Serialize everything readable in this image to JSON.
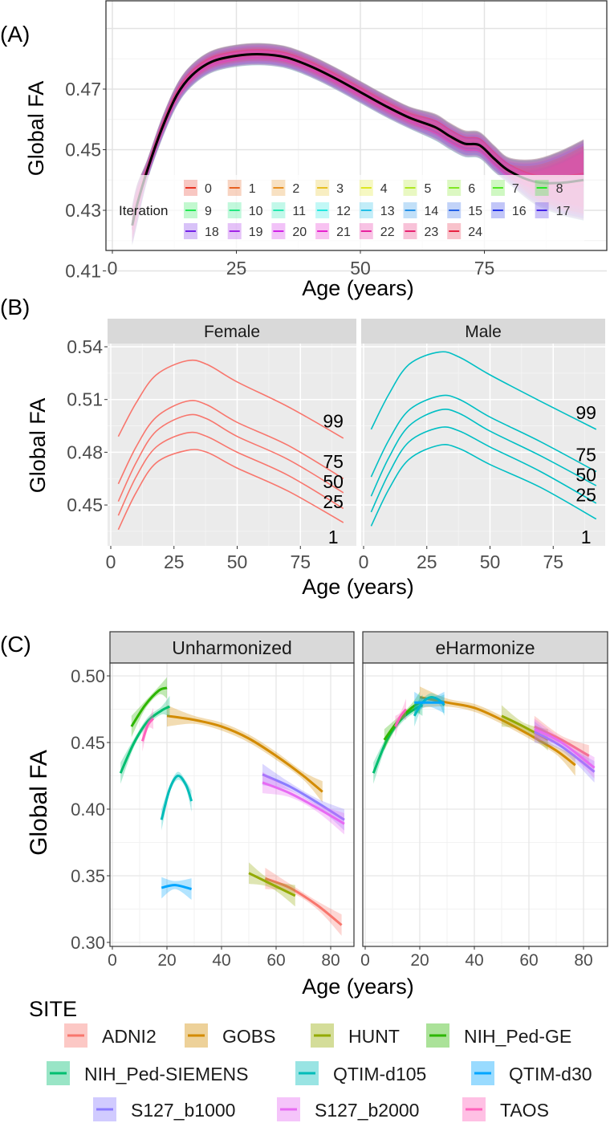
{
  "chart_data": [
    {
      "panel": "(A)",
      "type": "line",
      "xlabel": "Age (years)",
      "ylabel": "Global FA",
      "xlim": [
        0,
        97
      ],
      "ylim": [
        0.4076,
        0.4899
      ],
      "xticks": [
        "0",
        "25",
        "50",
        "75"
      ],
      "yticks": [
        "0.41",
        "0.43",
        "0.45",
        "0.47"
      ],
      "legend": {
        "title": "Iteration",
        "entries": [
          "0",
          "1",
          "2",
          "3",
          "4",
          "5",
          "6",
          "7",
          "8",
          "9",
          "10",
          "11",
          "12",
          "13",
          "14",
          "15",
          "16",
          "17",
          "18",
          "19",
          "20",
          "21",
          "22",
          "23",
          "24"
        ],
        "placement": "inside-bottom"
      },
      "mean_line": {
        "x": [
          4,
          5,
          7,
          10,
          13,
          16,
          20,
          25,
          30,
          35,
          40,
          45,
          50,
          55,
          60,
          65,
          68,
          71,
          74,
          77,
          80,
          85,
          90,
          95
        ],
        "y": [
          0.425,
          0.432,
          0.443,
          0.457,
          0.468,
          0.4745,
          0.479,
          0.481,
          0.4815,
          0.4805,
          0.4775,
          0.4735,
          0.469,
          0.4645,
          0.4605,
          0.4575,
          0.4545,
          0.452,
          0.4515,
          0.447,
          0.443,
          0.4395,
          0.439,
          0.44
        ]
      }
    },
    {
      "panel": "(B)",
      "type": "line",
      "xlabel": "Age (years)",
      "ylabel": "Global FA",
      "xlim": [
        0,
        94
      ],
      "ylim": [
        0.4265,
        0.5418
      ],
      "xticks": [
        "0",
        "25",
        "50",
        "75"
      ],
      "yticks": [
        "0.45",
        "0.48",
        "0.51",
        "0.54"
      ],
      "x": [
        3,
        10,
        18,
        30,
        38,
        50,
        70,
        92
      ],
      "facets": [
        {
          "name": "Female",
          "color": "#F8766D",
          "series": [
            {
              "name": "99",
              "values": [
                0.489,
                0.508,
                0.524,
                0.532,
                0.53,
                0.52,
                0.506,
                0.488
              ]
            },
            {
              "name": "75",
              "values": [
                0.462,
                0.483,
                0.5,
                0.509,
                0.507,
                0.497,
                0.484,
                0.465
              ]
            },
            {
              "name": "50",
              "values": [
                0.452,
                0.474,
                0.492,
                0.501,
                0.499,
                0.489,
                0.476,
                0.457
              ]
            },
            {
              "name": "25",
              "values": [
                0.444,
                0.466,
                0.483,
                0.491,
                0.489,
                0.48,
                0.467,
                0.448
              ]
            },
            {
              "name": "1",
              "values": [
                0.436,
                0.457,
                0.474,
                0.481,
                0.48,
                0.471,
                0.458,
                0.44
              ]
            }
          ]
        },
        {
          "name": "Male",
          "color": "#00BFC4",
          "series": [
            {
              "name": "99",
              "values": [
                0.493,
                0.513,
                0.53,
                0.537,
                0.534,
                0.524,
                0.509,
                0.493
              ]
            },
            {
              "name": "75",
              "values": [
                0.466,
                0.487,
                0.504,
                0.512,
                0.51,
                0.5,
                0.486,
                0.469
              ]
            },
            {
              "name": "50",
              "values": [
                0.455,
                0.477,
                0.495,
                0.504,
                0.502,
                0.492,
                0.478,
                0.461
              ]
            },
            {
              "name": "25",
              "values": [
                0.446,
                0.468,
                0.486,
                0.494,
                0.492,
                0.483,
                0.469,
                0.451
              ]
            },
            {
              "name": "1",
              "values": [
                0.438,
                0.459,
                0.476,
                0.484,
                0.482,
                0.473,
                0.46,
                0.442
              ]
            }
          ]
        }
      ]
    },
    {
      "panel": "(C)",
      "type": "line",
      "xlabel": "Age (years)",
      "ylabel": "Global FA",
      "xlim": [
        -1,
        88
      ],
      "ylim": [
        0.2964,
        0.5096
      ],
      "xticks": [
        "0",
        "20",
        "40",
        "60",
        "80"
      ],
      "yticks": [
        "0.30",
        "0.35",
        "0.40",
        "0.45",
        "0.50"
      ],
      "legend": {
        "title": "SITE",
        "placement": "bottom"
      },
      "sites": [
        {
          "name": "ADNI2",
          "color": "#F8766D"
        },
        {
          "name": "GOBS",
          "color": "#D38B00"
        },
        {
          "name": "HUNT",
          "color": "#93AA00"
        },
        {
          "name": "NIH_Ped-GE",
          "color": "#2DB600"
        },
        {
          "name": "NIH_Ped-SIEMENS",
          "color": "#00BE70"
        },
        {
          "name": "QTIM-d105",
          "color": "#00BCB8"
        },
        {
          "name": "QTIM-d30",
          "color": "#00A5FF"
        },
        {
          "name": "S127_b1000",
          "color": "#8C7CFF"
        },
        {
          "name": "S127_b2000",
          "color": "#E76BF3"
        },
        {
          "name": "TAOS",
          "color": "#FF62BC"
        }
      ],
      "facets": [
        {
          "name": "Unharmonized",
          "series": [
            {
              "site": "GOBS",
              "x": [
                20,
                30,
                40,
                50,
                60,
                70,
                77
              ],
              "y": [
                0.47,
                0.467,
                0.462,
                0.453,
                0.44,
                0.425,
                0.413
              ]
            },
            {
              "site": "NIH_Ped-GE",
              "x": [
                7,
                12,
                17,
                20
              ],
              "y": [
                0.462,
                0.478,
                0.489,
                0.491
              ]
            },
            {
              "site": "NIH_Ped-SIEMENS",
              "x": [
                3,
                8,
                13,
                18,
                21
              ],
              "y": [
                0.427,
                0.45,
                0.466,
                0.474,
                0.477
              ]
            },
            {
              "site": "TAOS",
              "x": [
                11,
                13,
                15
              ],
              "y": [
                0.451,
                0.463,
                0.468
              ]
            },
            {
              "site": "QTIM-d105",
              "x": [
                18,
                21,
                24,
                27,
                29
              ],
              "y": [
                0.392,
                0.415,
                0.425,
                0.418,
                0.406
              ]
            },
            {
              "site": "QTIM-d30",
              "x": [
                18,
                23,
                29
              ],
              "y": [
                0.341,
                0.343,
                0.34
              ]
            },
            {
              "site": "S127_b1000",
              "x": [
                55,
                65,
                75,
                85
              ],
              "y": [
                0.426,
                0.417,
                0.405,
                0.392
              ]
            },
            {
              "site": "S127_b2000",
              "x": [
                55,
                65,
                75,
                85
              ],
              "y": [
                0.42,
                0.412,
                0.401,
                0.389
              ]
            },
            {
              "site": "ADNI2",
              "x": [
                56,
                65,
                75,
                84
              ],
              "y": [
                0.348,
                0.341,
                0.328,
                0.313
              ]
            },
            {
              "site": "HUNT",
              "x": [
                50,
                58,
                67
              ],
              "y": [
                0.352,
                0.344,
                0.335
              ]
            }
          ]
        },
        {
          "name": "eHarmonize",
          "series": [
            {
              "site": "GOBS",
              "x": [
                20,
                30,
                40,
                50,
                60,
                70,
                77
              ],
              "y": [
                0.484,
                0.48,
                0.476,
                0.467,
                0.456,
                0.444,
                0.433
              ]
            },
            {
              "site": "NIH_Ped-SIEMENS",
              "x": [
                3,
                8,
                13,
                18,
                21
              ],
              "y": [
                0.427,
                0.452,
                0.467,
                0.475,
                0.478
              ]
            },
            {
              "site": "NIH_Ped-GE",
              "x": [
                7,
                12,
                17,
                20
              ],
              "y": [
                0.452,
                0.466,
                0.476,
                0.48
              ]
            },
            {
              "site": "TAOS",
              "x": [
                11,
                13,
                15
              ],
              "y": [
                0.462,
                0.47,
                0.475
              ]
            },
            {
              "site": "QTIM-d105",
              "x": [
                18,
                21,
                24,
                27,
                29
              ],
              "y": [
                0.47,
                0.48,
                0.484,
                0.482,
                0.478
              ]
            },
            {
              "site": "QTIM-d30",
              "x": [
                18,
                23,
                29
              ],
              "y": [
                0.48,
                0.48,
                0.48
              ]
            },
            {
              "site": "HUNT",
              "x": [
                50,
                58,
                67
              ],
              "y": [
                0.47,
                0.462,
                0.452
              ]
            },
            {
              "site": "ADNI2",
              "x": [
                62,
                72,
                82
              ],
              "y": [
                0.462,
                0.452,
                0.44
              ]
            },
            {
              "site": "S127_b1000",
              "x": [
                62,
                72,
                84
              ],
              "y": [
                0.458,
                0.447,
                0.428
              ]
            },
            {
              "site": "S127_b2000",
              "x": [
                62,
                72,
                84
              ],
              "y": [
                0.46,
                0.45,
                0.431
              ]
            }
          ]
        }
      ]
    }
  ]
}
